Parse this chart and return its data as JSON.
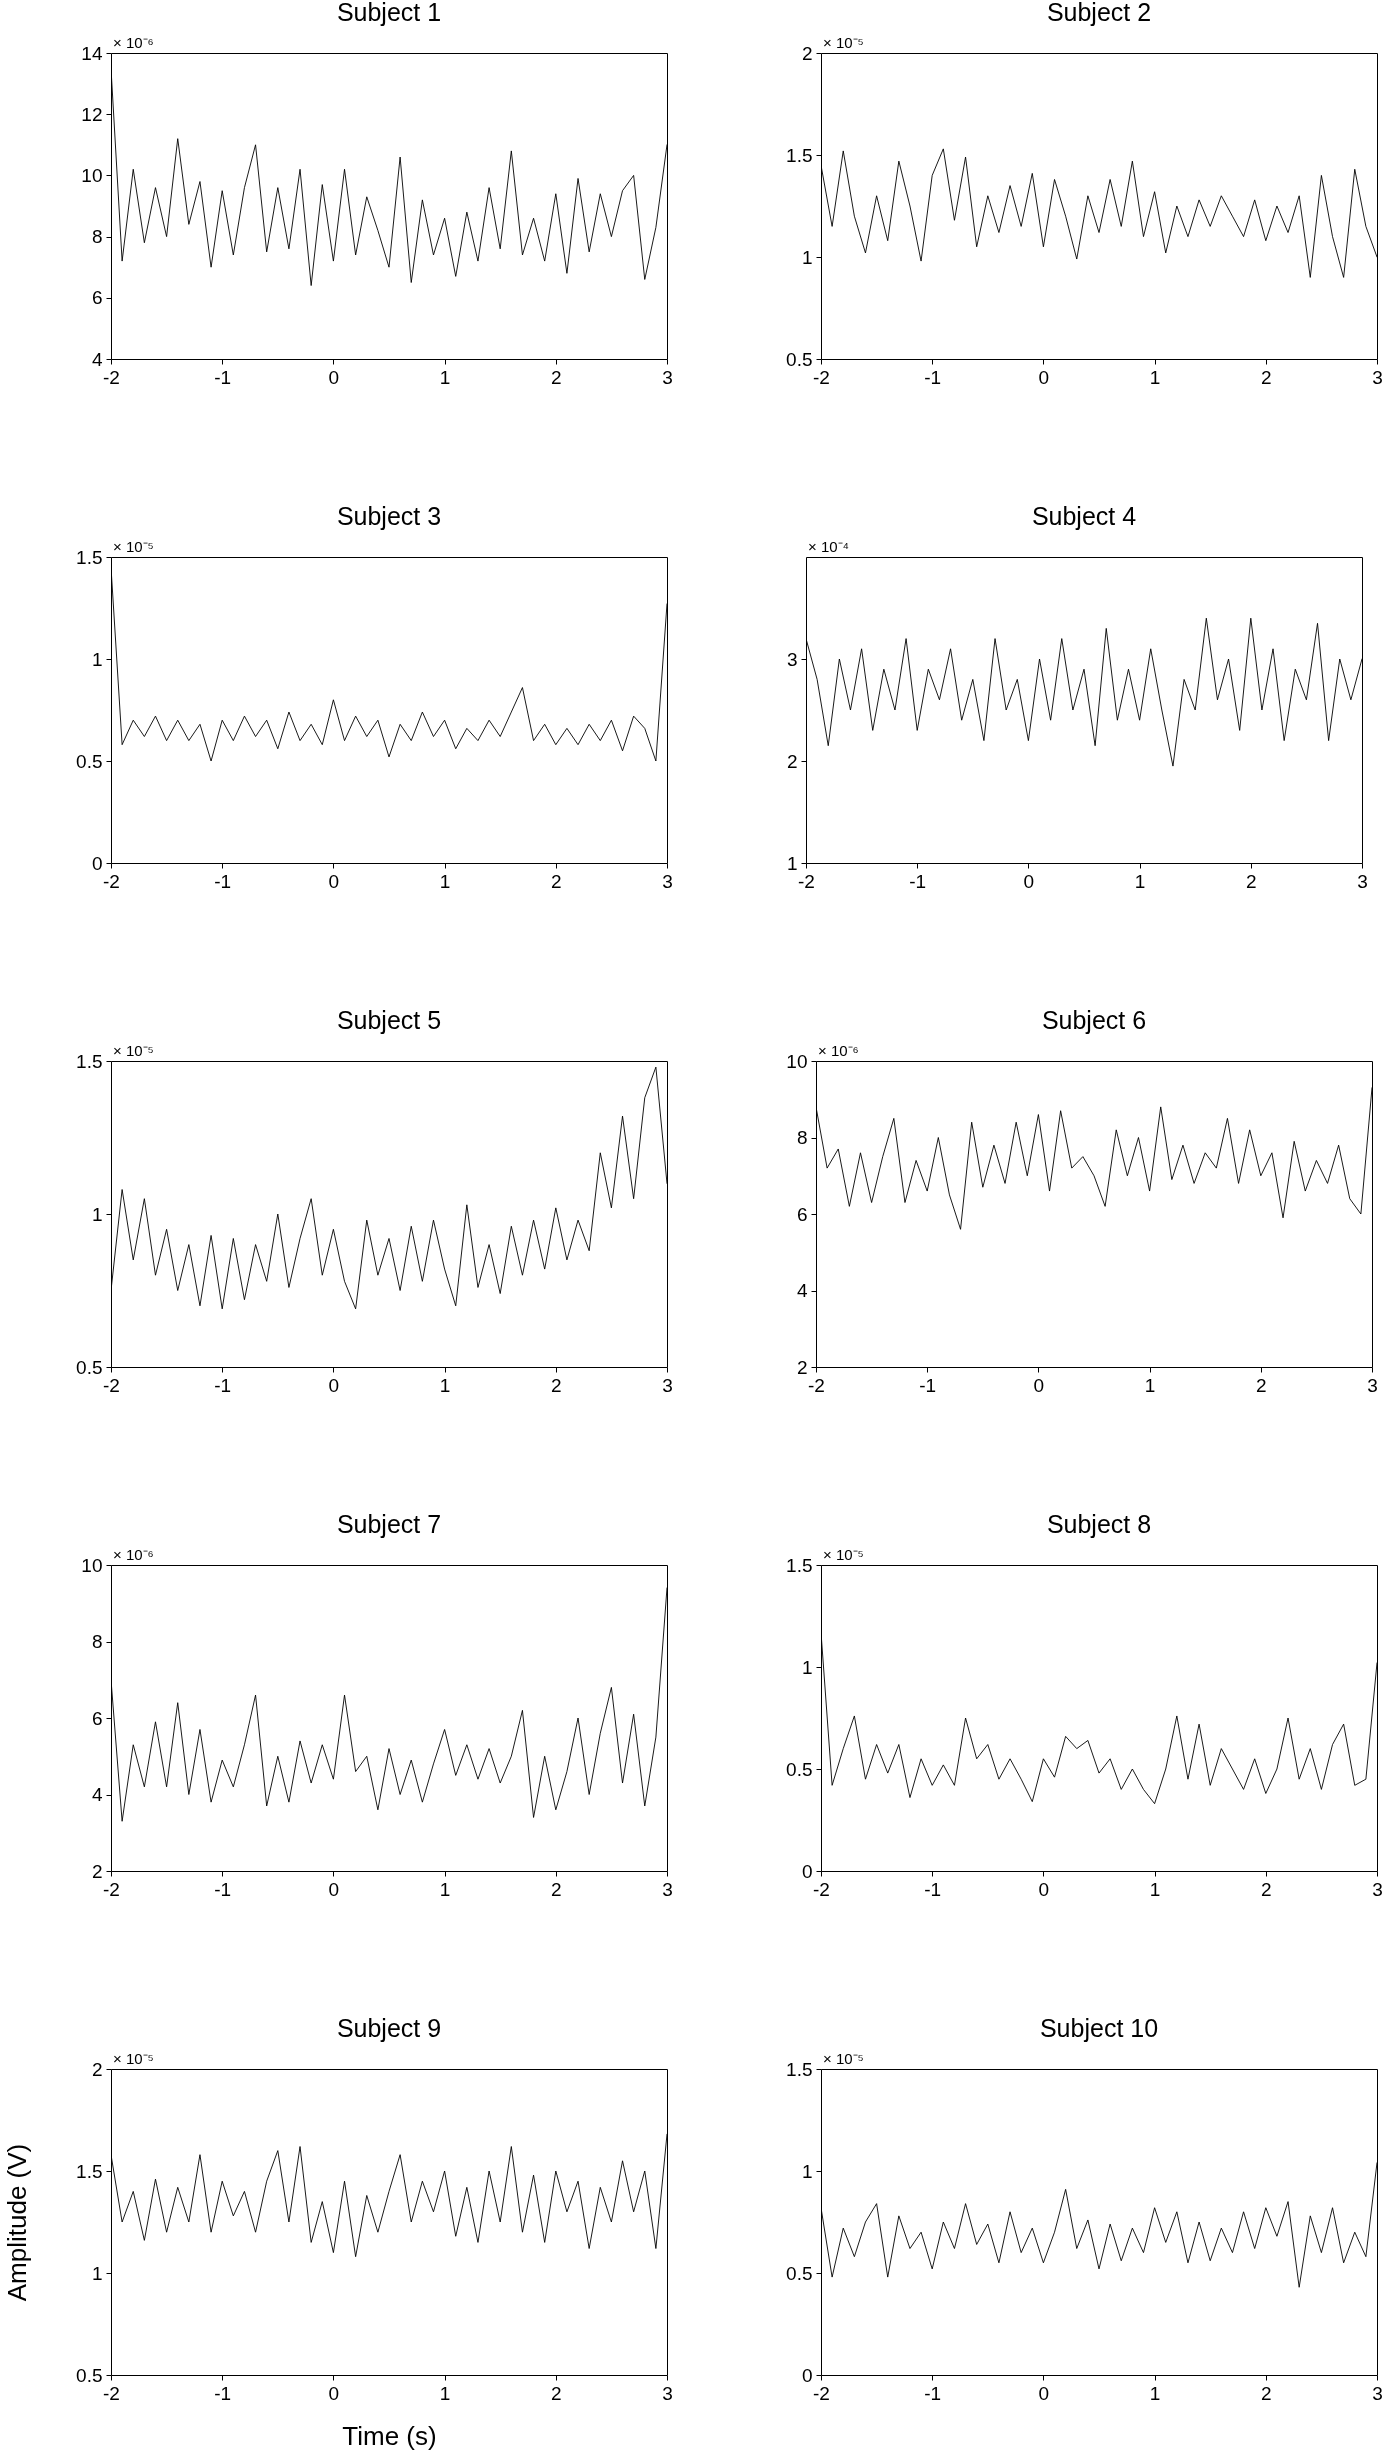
{
  "chart_data": [
    {
      "type": "line",
      "title": "Subject 1",
      "annotations": [
        "× 10⁻⁶"
      ],
      "color": "#000000",
      "xlim": [
        -2,
        3
      ],
      "xticks": [
        -2,
        -1,
        0,
        1,
        2,
        3
      ],
      "ylim": [
        4,
        14
      ],
      "yticks": [
        4,
        6,
        8,
        10,
        12,
        14
      ],
      "x": [
        -2,
        -1.9,
        -1.8,
        -1.7,
        -1.6,
        -1.5,
        -1.4,
        -1.3,
        -1.2,
        -1.1,
        -1,
        -0.9,
        -0.8,
        -0.7,
        -0.6,
        -0.5,
        -0.4,
        -0.3,
        -0.2,
        -0.1,
        0,
        0.1,
        0.2,
        0.3,
        0.4,
        0.5,
        0.6,
        0.7,
        0.8,
        0.9,
        1,
        1.1,
        1.2,
        1.3,
        1.4,
        1.5,
        1.6,
        1.7,
        1.8,
        1.9,
        2,
        2.1,
        2.2,
        2.3,
        2.4,
        2.5,
        2.6,
        2.7,
        2.8,
        2.9,
        3
      ],
      "values": [
        13.5,
        7.2,
        10.2,
        7.8,
        9.6,
        8.0,
        11.2,
        8.4,
        9.8,
        7.0,
        9.5,
        7.4,
        9.6,
        11.0,
        7.5,
        9.6,
        7.6,
        10.2,
        6.4,
        9.7,
        7.2,
        10.2,
        7.4,
        9.3,
        8.2,
        7.0,
        10.6,
        6.5,
        9.2,
        7.4,
        8.6,
        6.7,
        8.8,
        7.2,
        9.6,
        7.6,
        10.8,
        7.4,
        8.6,
        7.2,
        9.4,
        6.8,
        9.9,
        7.5,
        9.4,
        8.0,
        9.5,
        10.0,
        6.6,
        8.3,
        11.0
      ]
    },
    {
      "type": "line",
      "title": "Subject 2",
      "annotations": [
        "× 10⁻⁵"
      ],
      "color": "#000000",
      "xlim": [
        -2,
        3
      ],
      "xticks": [
        -2,
        -1,
        0,
        1,
        2,
        3
      ],
      "ylim": [
        0.5,
        2
      ],
      "yticks": [
        0.5,
        1,
        1.5,
        2
      ],
      "x": [
        -2,
        -1.9,
        -1.8,
        -1.7,
        -1.6,
        -1.5,
        -1.4,
        -1.3,
        -1.2,
        -1.1,
        -1,
        -0.9,
        -0.8,
        -0.7,
        -0.6,
        -0.5,
        -0.4,
        -0.3,
        -0.2,
        -0.1,
        0,
        0.1,
        0.2,
        0.3,
        0.4,
        0.5,
        0.6,
        0.7,
        0.8,
        0.9,
        1,
        1.1,
        1.2,
        1.3,
        1.4,
        1.5,
        1.6,
        1.7,
        1.8,
        1.9,
        2,
        2.1,
        2.2,
        2.3,
        2.4,
        2.5,
        2.6,
        2.7,
        2.8,
        2.9,
        3
      ],
      "values": [
        1.45,
        1.15,
        1.52,
        1.2,
        1.02,
        1.3,
        1.08,
        1.47,
        1.25,
        0.98,
        1.4,
        1.53,
        1.18,
        1.49,
        1.05,
        1.3,
        1.12,
        1.35,
        1.15,
        1.41,
        1.05,
        1.38,
        1.2,
        0.99,
        1.3,
        1.12,
        1.38,
        1.15,
        1.47,
        1.1,
        1.32,
        1.02,
        1.25,
        1.1,
        1.28,
        1.15,
        1.3,
        1.2,
        1.1,
        1.28,
        1.08,
        1.25,
        1.12,
        1.3,
        0.9,
        1.4,
        1.1,
        0.9,
        1.43,
        1.15,
        1.0
      ]
    },
    {
      "type": "line",
      "title": "Subject 3",
      "annotations": [
        "× 10⁻⁵"
      ],
      "color": "#000000",
      "xlim": [
        -2,
        3
      ],
      "xticks": [
        -2,
        -1,
        0,
        1,
        2,
        3
      ],
      "ylim": [
        0,
        1.5
      ],
      "yticks": [
        0,
        0.5,
        1,
        1.5
      ],
      "x": [
        -2,
        -1.9,
        -1.8,
        -1.7,
        -1.6,
        -1.5,
        -1.4,
        -1.3,
        -1.2,
        -1.1,
        -1,
        -0.9,
        -0.8,
        -0.7,
        -0.6,
        -0.5,
        -0.4,
        -0.3,
        -0.2,
        -0.1,
        0,
        0.1,
        0.2,
        0.3,
        0.4,
        0.5,
        0.6,
        0.7,
        0.8,
        0.9,
        1,
        1.1,
        1.2,
        1.3,
        1.4,
        1.5,
        1.6,
        1.7,
        1.8,
        1.9,
        2,
        2.1,
        2.2,
        2.3,
        2.4,
        2.5,
        2.6,
        2.7,
        2.8,
        2.9,
        3
      ],
      "values": [
        1.45,
        0.58,
        0.7,
        0.62,
        0.72,
        0.6,
        0.7,
        0.6,
        0.68,
        0.5,
        0.7,
        0.6,
        0.72,
        0.62,
        0.7,
        0.56,
        0.74,
        0.6,
        0.68,
        0.58,
        0.8,
        0.6,
        0.72,
        0.62,
        0.7,
        0.52,
        0.68,
        0.6,
        0.74,
        0.62,
        0.7,
        0.56,
        0.66,
        0.6,
        0.7,
        0.62,
        0.74,
        0.86,
        0.6,
        0.68,
        0.58,
        0.66,
        0.58,
        0.68,
        0.6,
        0.7,
        0.55,
        0.72,
        0.66,
        0.5,
        1.27
      ]
    },
    {
      "type": "line",
      "title": "Subject 4",
      "annotations": [
        "× 10⁻⁴"
      ],
      "color": "#000000",
      "xlim": [
        -2,
        3
      ],
      "xticks": [
        -2,
        -1,
        0,
        1,
        2,
        3
      ],
      "ylim": [
        1,
        4
      ],
      "yticks": [
        1,
        2,
        3
      ],
      "x": [
        -2,
        -1.9,
        -1.8,
        -1.7,
        -1.6,
        -1.5,
        -1.4,
        -1.3,
        -1.2,
        -1.1,
        -1,
        -0.9,
        -0.8,
        -0.7,
        -0.6,
        -0.5,
        -0.4,
        -0.3,
        -0.2,
        -0.1,
        0,
        0.1,
        0.2,
        0.3,
        0.4,
        0.5,
        0.6,
        0.7,
        0.8,
        0.9,
        1,
        1.1,
        1.2,
        1.3,
        1.4,
        1.5,
        1.6,
        1.7,
        1.8,
        1.9,
        2,
        2.1,
        2.2,
        2.3,
        2.4,
        2.5,
        2.6,
        2.7,
        2.8,
        2.9,
        3
      ],
      "values": [
        3.2,
        2.8,
        2.15,
        3.0,
        2.5,
        3.1,
        2.3,
        2.9,
        2.5,
        3.2,
        2.3,
        2.9,
        2.6,
        3.1,
        2.4,
        2.8,
        2.2,
        3.2,
        2.5,
        2.8,
        2.2,
        3.0,
        2.4,
        3.2,
        2.5,
        2.9,
        2.15,
        3.3,
        2.4,
        2.9,
        2.4,
        3.1,
        2.5,
        1.95,
        2.8,
        2.5,
        3.4,
        2.6,
        3.0,
        2.3,
        3.4,
        2.5,
        3.1,
        2.2,
        2.9,
        2.6,
        3.35,
        2.2,
        3.0,
        2.6,
        3.0
      ]
    },
    {
      "type": "line",
      "title": "Subject 5",
      "annotations": [
        "× 10⁻⁵"
      ],
      "color": "#000000",
      "xlim": [
        -2,
        3
      ],
      "xticks": [
        -2,
        -1,
        0,
        1,
        2,
        3
      ],
      "ylim": [
        0.5,
        1.5
      ],
      "yticks": [
        0.5,
        1,
        1.5
      ],
      "x": [
        -2,
        -1.9,
        -1.8,
        -1.7,
        -1.6,
        -1.5,
        -1.4,
        -1.3,
        -1.2,
        -1.1,
        -1,
        -0.9,
        -0.8,
        -0.7,
        -0.6,
        -0.5,
        -0.4,
        -0.3,
        -0.2,
        -0.1,
        0,
        0.1,
        0.2,
        0.3,
        0.4,
        0.5,
        0.6,
        0.7,
        0.8,
        0.9,
        1,
        1.1,
        1.2,
        1.3,
        1.4,
        1.5,
        1.6,
        1.7,
        1.8,
        1.9,
        2,
        2.1,
        2.2,
        2.3,
        2.4,
        2.5,
        2.6,
        2.7,
        2.8,
        2.9,
        3
      ],
      "values": [
        0.75,
        1.08,
        0.85,
        1.05,
        0.8,
        0.95,
        0.75,
        0.9,
        0.7,
        0.93,
        0.69,
        0.92,
        0.72,
        0.9,
        0.78,
        1.0,
        0.76,
        0.92,
        1.05,
        0.8,
        0.95,
        0.78,
        0.69,
        0.98,
        0.8,
        0.92,
        0.75,
        0.96,
        0.78,
        0.98,
        0.82,
        0.7,
        1.03,
        0.76,
        0.9,
        0.74,
        0.96,
        0.8,
        0.98,
        0.82,
        1.02,
        0.85,
        0.98,
        0.88,
        1.2,
        1.02,
        1.32,
        1.05,
        1.38,
        1.48,
        1.1
      ]
    },
    {
      "type": "line",
      "title": "Subject 6",
      "annotations": [
        "× 10⁻⁶"
      ],
      "color": "#000000",
      "xlim": [
        -2,
        3
      ],
      "xticks": [
        -2,
        -1,
        0,
        1,
        2,
        3
      ],
      "ylim": [
        2,
        10
      ],
      "yticks": [
        2,
        4,
        6,
        8,
        10
      ],
      "x": [
        -2,
        -1.9,
        -1.8,
        -1.7,
        -1.6,
        -1.5,
        -1.4,
        -1.3,
        -1.2,
        -1.1,
        -1,
        -0.9,
        -0.8,
        -0.7,
        -0.6,
        -0.5,
        -0.4,
        -0.3,
        -0.2,
        -0.1,
        0,
        0.1,
        0.2,
        0.3,
        0.4,
        0.5,
        0.6,
        0.7,
        0.8,
        0.9,
        1,
        1.1,
        1.2,
        1.3,
        1.4,
        1.5,
        1.6,
        1.7,
        1.8,
        1.9,
        2,
        2.1,
        2.2,
        2.3,
        2.4,
        2.5,
        2.6,
        2.7,
        2.8,
        2.9,
        3
      ],
      "values": [
        8.8,
        7.2,
        7.7,
        6.2,
        7.6,
        6.3,
        7.5,
        8.5,
        6.3,
        7.4,
        6.6,
        8.0,
        6.5,
        5.6,
        8.4,
        6.7,
        7.8,
        6.8,
        8.4,
        7.0,
        8.6,
        6.6,
        8.7,
        7.2,
        7.5,
        7.0,
        6.2,
        8.2,
        7.0,
        8.0,
        6.6,
        8.8,
        6.9,
        7.8,
        6.8,
        7.6,
        7.2,
        8.5,
        6.8,
        8.2,
        7.0,
        7.6,
        5.9,
        7.9,
        6.6,
        7.4,
        6.8,
        7.8,
        6.4,
        6.0,
        9.3
      ]
    },
    {
      "type": "line",
      "title": "Subject 7",
      "annotations": [
        "× 10⁻⁶"
      ],
      "color": "#000000",
      "xlim": [
        -2,
        3
      ],
      "xticks": [
        -2,
        -1,
        0,
        1,
        2,
        3
      ],
      "ylim": [
        2,
        10
      ],
      "yticks": [
        2,
        4,
        6,
        8,
        10
      ],
      "x": [
        -2,
        -1.9,
        -1.8,
        -1.7,
        -1.6,
        -1.5,
        -1.4,
        -1.3,
        -1.2,
        -1.1,
        -1,
        -0.9,
        -0.8,
        -0.7,
        -0.6,
        -0.5,
        -0.4,
        -0.3,
        -0.2,
        -0.1,
        0,
        0.1,
        0.2,
        0.3,
        0.4,
        0.5,
        0.6,
        0.7,
        0.8,
        0.9,
        1,
        1.1,
        1.2,
        1.3,
        1.4,
        1.5,
        1.6,
        1.7,
        1.8,
        1.9,
        2,
        2.1,
        2.2,
        2.3,
        2.4,
        2.5,
        2.6,
        2.7,
        2.8,
        2.9,
        3
      ],
      "values": [
        7.0,
        3.3,
        5.3,
        4.2,
        5.9,
        4.2,
        6.4,
        4.0,
        5.7,
        3.8,
        4.9,
        4.2,
        5.3,
        6.6,
        3.7,
        5.0,
        3.8,
        5.4,
        4.3,
        5.3,
        4.4,
        6.6,
        4.6,
        5.0,
        3.6,
        5.2,
        4.0,
        4.9,
        3.8,
        4.8,
        5.7,
        4.5,
        5.3,
        4.4,
        5.2,
        4.3,
        5.0,
        6.2,
        3.4,
        5.0,
        3.6,
        4.6,
        6.0,
        4.0,
        5.6,
        6.8,
        4.3,
        6.1,
        3.7,
        5.5,
        9.4
      ]
    },
    {
      "type": "line",
      "title": "Subject 8",
      "annotations": [
        "× 10⁻⁵"
      ],
      "color": "#000000",
      "xlim": [
        -2,
        3
      ],
      "xticks": [
        -2,
        -1,
        0,
        1,
        2,
        3
      ],
      "ylim": [
        0,
        1.5
      ],
      "yticks": [
        0,
        0.5,
        1,
        1.5
      ],
      "x": [
        -2,
        -1.9,
        -1.8,
        -1.7,
        -1.6,
        -1.5,
        -1.4,
        -1.3,
        -1.2,
        -1.1,
        -1,
        -0.9,
        -0.8,
        -0.7,
        -0.6,
        -0.5,
        -0.4,
        -0.3,
        -0.2,
        -0.1,
        0,
        0.1,
        0.2,
        0.3,
        0.4,
        0.5,
        0.6,
        0.7,
        0.8,
        0.9,
        1,
        1.1,
        1.2,
        1.3,
        1.4,
        1.5,
        1.6,
        1.7,
        1.8,
        1.9,
        2,
        2.1,
        2.2,
        2.3,
        2.4,
        2.5,
        2.6,
        2.7,
        2.8,
        2.9,
        3
      ],
      "values": [
        1.17,
        0.42,
        0.6,
        0.76,
        0.45,
        0.62,
        0.48,
        0.62,
        0.36,
        0.55,
        0.42,
        0.52,
        0.42,
        0.75,
        0.55,
        0.62,
        0.45,
        0.55,
        0.45,
        0.34,
        0.55,
        0.46,
        0.66,
        0.6,
        0.64,
        0.48,
        0.55,
        0.4,
        0.5,
        0.4,
        0.33,
        0.5,
        0.76,
        0.45,
        0.72,
        0.42,
        0.6,
        0.5,
        0.4,
        0.55,
        0.38,
        0.5,
        0.75,
        0.45,
        0.6,
        0.4,
        0.62,
        0.72,
        0.42,
        0.45,
        1.02
      ]
    },
    {
      "type": "line",
      "title": "Subject 9",
      "xlabel": "Time (s)",
      "ylabel": "Amplitude (V)",
      "annotations": [
        "× 10⁻⁵"
      ],
      "color": "#000000",
      "xlim": [
        -2,
        3
      ],
      "xticks": [
        -2,
        -1,
        0,
        1,
        2,
        3
      ],
      "ylim": [
        0.5,
        2
      ],
      "yticks": [
        0.5,
        1,
        1.5,
        2
      ],
      "x": [
        -2,
        -1.9,
        -1.8,
        -1.7,
        -1.6,
        -1.5,
        -1.4,
        -1.3,
        -1.2,
        -1.1,
        -1,
        -0.9,
        -0.8,
        -0.7,
        -0.6,
        -0.5,
        -0.4,
        -0.3,
        -0.2,
        -0.1,
        0,
        0.1,
        0.2,
        0.3,
        0.4,
        0.5,
        0.6,
        0.7,
        0.8,
        0.9,
        1,
        1.1,
        1.2,
        1.3,
        1.4,
        1.5,
        1.6,
        1.7,
        1.8,
        1.9,
        2,
        2.1,
        2.2,
        2.3,
        2.4,
        2.5,
        2.6,
        2.7,
        2.8,
        2.9,
        3
      ],
      "values": [
        1.58,
        1.25,
        1.4,
        1.16,
        1.46,
        1.2,
        1.42,
        1.25,
        1.58,
        1.2,
        1.45,
        1.28,
        1.4,
        1.2,
        1.45,
        1.6,
        1.25,
        1.62,
        1.15,
        1.35,
        1.1,
        1.45,
        1.08,
        1.38,
        1.2,
        1.4,
        1.58,
        1.25,
        1.45,
        1.3,
        1.5,
        1.18,
        1.42,
        1.15,
        1.5,
        1.25,
        1.62,
        1.2,
        1.48,
        1.15,
        1.5,
        1.3,
        1.45,
        1.12,
        1.42,
        1.25,
        1.55,
        1.3,
        1.5,
        1.12,
        1.68
      ]
    },
    {
      "type": "line",
      "title": "Subject 10",
      "annotations": [
        "× 10⁻⁵"
      ],
      "color": "#000000",
      "xlim": [
        -2,
        3
      ],
      "xticks": [
        -2,
        -1,
        0,
        1,
        2,
        3
      ],
      "ylim": [
        0,
        1.5
      ],
      "yticks": [
        0,
        0.5,
        1,
        1.5
      ],
      "x": [
        -2,
        -1.9,
        -1.8,
        -1.7,
        -1.6,
        -1.5,
        -1.4,
        -1.3,
        -1.2,
        -1.1,
        -1,
        -0.9,
        -0.8,
        -0.7,
        -0.6,
        -0.5,
        -0.4,
        -0.3,
        -0.2,
        -0.1,
        0,
        0.1,
        0.2,
        0.3,
        0.4,
        0.5,
        0.6,
        0.7,
        0.8,
        0.9,
        1,
        1.1,
        1.2,
        1.3,
        1.4,
        1.5,
        1.6,
        1.7,
        1.8,
        1.9,
        2,
        2.1,
        2.2,
        2.3,
        2.4,
        2.5,
        2.6,
        2.7,
        2.8,
        2.9,
        3
      ],
      "values": [
        0.82,
        0.48,
        0.72,
        0.58,
        0.75,
        0.84,
        0.48,
        0.78,
        0.62,
        0.7,
        0.52,
        0.75,
        0.62,
        0.84,
        0.64,
        0.74,
        0.55,
        0.8,
        0.6,
        0.72,
        0.55,
        0.7,
        0.91,
        0.62,
        0.76,
        0.52,
        0.74,
        0.56,
        0.72,
        0.6,
        0.82,
        0.65,
        0.8,
        0.55,
        0.75,
        0.56,
        0.72,
        0.6,
        0.8,
        0.62,
        0.82,
        0.68,
        0.85,
        0.43,
        0.78,
        0.6,
        0.82,
        0.55,
        0.7,
        0.58,
        1.04
      ]
    }
  ]
}
